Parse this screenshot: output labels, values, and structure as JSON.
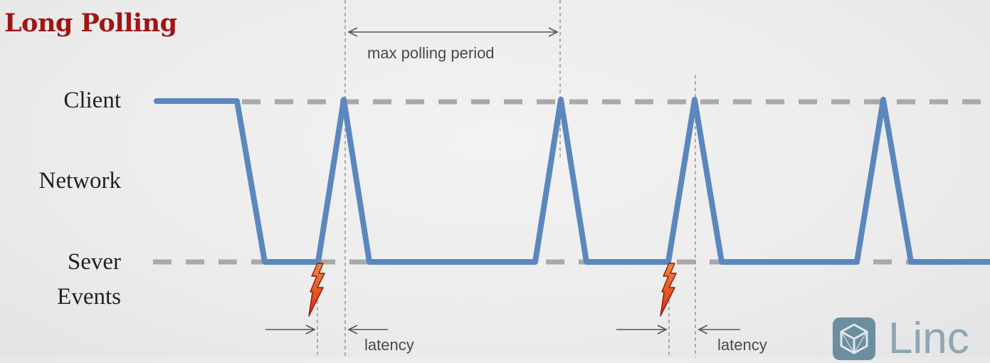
{
  "title": "Long Polling",
  "rows": {
    "client": "Client",
    "network": "Network",
    "server": "Sever",
    "events": "Events"
  },
  "annotations": {
    "period": "max polling period",
    "latency_1": "latency",
    "latency_2": "latency"
  },
  "brand": {
    "text": "Linc",
    "icon": "cube-icon"
  },
  "colors": {
    "title": "#a01414",
    "signal": "#5b87be",
    "dashed_level": "#a9a9a9",
    "guide": "#8a8a8a",
    "bolt": "#e4371b"
  }
}
